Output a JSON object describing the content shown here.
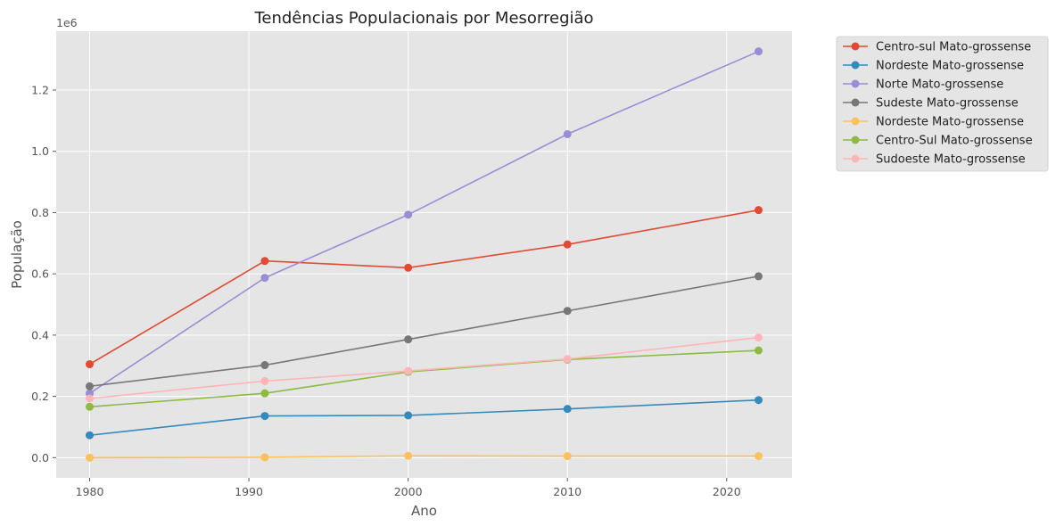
{
  "chart_data": {
    "type": "line",
    "title": "Tendências Populacionais por Mesorregião",
    "xlabel": "Ano",
    "ylabel": "População",
    "y_offset_label": "1e6",
    "x": [
      1980,
      1991,
      2000,
      2010,
      2022
    ],
    "x_ticks": [
      1980,
      1990,
      2000,
      2010,
      2020
    ],
    "x_tick_labels": [
      "1980",
      "1990",
      "2000",
      "2010",
      "2020"
    ],
    "xlim": [
      1977.9,
      2024.1
    ],
    "y_ticks": [
      0,
      0.2,
      0.4,
      0.6,
      0.8,
      1.0,
      1.2
    ],
    "y_tick_labels": [
      "0.0",
      "0.2",
      "0.4",
      "0.6",
      "0.8",
      "1.0",
      "1.2"
    ],
    "ylim": [
      -0.066,
      1.392
    ],
    "y_unit_multiplier": 1000000,
    "grid": true,
    "legend_position": "outside-right",
    "series": [
      {
        "name": "Centro-sul Mato-grossense",
        "color": "#E24A33",
        "values": [
          0.305,
          0.642,
          0.62,
          0.696,
          0.808
        ]
      },
      {
        "name": "Nordeste Mato-grossense",
        "color": "#348ABD",
        "values": [
          0.073,
          0.136,
          0.138,
          0.159,
          0.188
        ]
      },
      {
        "name": "Norte Mato-grossense",
        "color": "#988ED5",
        "values": [
          0.21,
          0.587,
          0.793,
          1.056,
          1.326
        ]
      },
      {
        "name": "Sudeste Mato-grossense",
        "color": "#777777",
        "values": [
          0.233,
          0.302,
          0.386,
          0.479,
          0.592
        ]
      },
      {
        "name": "Nordeste Mato-grossense",
        "color": "#FBC15E",
        "values": [
          0.0,
          0.001,
          0.006,
          0.005,
          0.005
        ]
      },
      {
        "name": "Centro-Sul Mato-grossense",
        "color": "#8EBA42",
        "values": [
          0.166,
          0.21,
          0.28,
          0.32,
          0.35
        ]
      },
      {
        "name": "Sudoeste Mato-grossense",
        "color": "#FFB5B8",
        "values": [
          0.193,
          0.25,
          0.283,
          0.322,
          0.392
        ]
      }
    ]
  }
}
